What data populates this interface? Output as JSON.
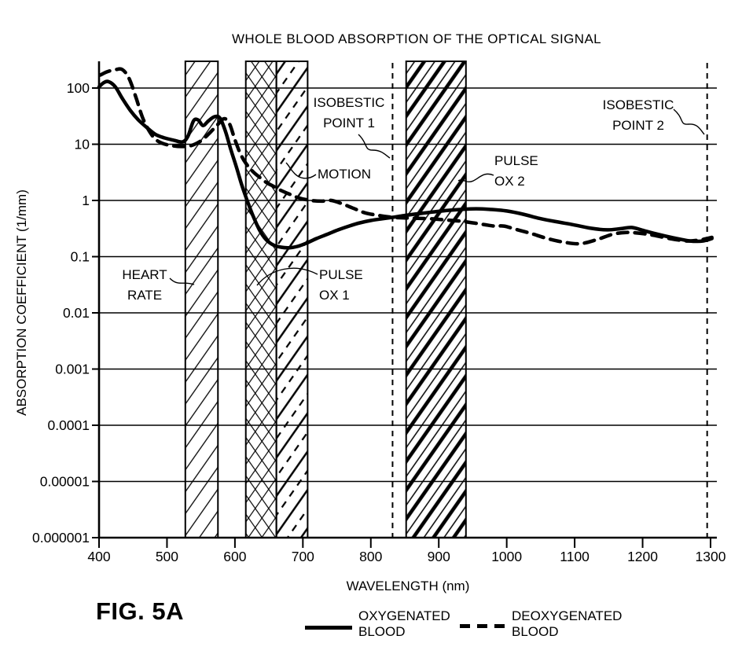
{
  "title": "WHOLE BLOOD ABSORPTION OF THE OPTICAL SIGNAL",
  "fig_label": "FIG. 5A",
  "axes": {
    "x_label": "WAVELENGTH (nm)",
    "y_label": "ABSORPTION COEFFICIENT (1/mm)",
    "x_ticks": [
      400,
      500,
      600,
      700,
      800,
      900,
      1000,
      1100,
      1200,
      1300
    ],
    "y_ticks": [
      "100",
      "10",
      "1",
      "0.1",
      "0.01",
      "0.001",
      "0.0001",
      "0.00001",
      "0.000001"
    ]
  },
  "annotations": {
    "heart_rate": "HEART\nRATE",
    "pulse_ox_1": "PULSE\nOX 1",
    "motion": "MOTION",
    "isobestic_1": "ISOBESTIC\nPOINT 1",
    "pulse_ox_2": "PULSE\nOX 2",
    "isobestic_2": "ISOBESTIC\nPOINT 2"
  },
  "legend": {
    "oxygenated": "OXYGENATED\nBLOOD",
    "deoxygenated": "DEOXYGENATED\nBLOOD"
  },
  "colors": {
    "ink": "#000000",
    "background": "#ffffff"
  },
  "chart_data": {
    "type": "line",
    "title": "WHOLE BLOOD ABSORPTION OF THE OPTICAL SIGNAL",
    "xlabel": "WAVELENGTH (nm)",
    "ylabel": "ABSORPTION COEFFICIENT (1/mm)",
    "x_range": [
      400,
      1300
    ],
    "y_scale": "log",
    "y_range": [
      1e-06,
      300
    ],
    "grid": "horizontal-decades",
    "legend_position": "below",
    "series": [
      {
        "name": "OXYGENATED BLOOD",
        "style": "solid",
        "points": [
          [
            400,
            105
          ],
          [
            407,
            125
          ],
          [
            414,
            130
          ],
          [
            424,
            105
          ],
          [
            434,
            66
          ],
          [
            446,
            40
          ],
          [
            458,
            27
          ],
          [
            470,
            20
          ],
          [
            483,
            15
          ],
          [
            496,
            13
          ],
          [
            510,
            11.8
          ],
          [
            523,
            11
          ],
          [
            531,
            14
          ],
          [
            539,
            26
          ],
          [
            546,
            27
          ],
          [
            553,
            21.5
          ],
          [
            561,
            26
          ],
          [
            570,
            31
          ],
          [
            578,
            29
          ],
          [
            586,
            17
          ],
          [
            594,
            8
          ],
          [
            602,
            4
          ],
          [
            610,
            1.9
          ],
          [
            618,
            1.0
          ],
          [
            627,
            0.52
          ],
          [
            636,
            0.3
          ],
          [
            646,
            0.2
          ],
          [
            657,
            0.16
          ],
          [
            668,
            0.147
          ],
          [
            680,
            0.144
          ],
          [
            692,
            0.152
          ],
          [
            706,
            0.175
          ],
          [
            720,
            0.21
          ],
          [
            736,
            0.25
          ],
          [
            752,
            0.3
          ],
          [
            768,
            0.35
          ],
          [
            784,
            0.4
          ],
          [
            800,
            0.44
          ],
          [
            816,
            0.47
          ],
          [
            832,
            0.5
          ],
          [
            850,
            0.54
          ],
          [
            870,
            0.58
          ],
          [
            890,
            0.62
          ],
          [
            910,
            0.66
          ],
          [
            932,
            0.69
          ],
          [
            955,
            0.71
          ],
          [
            978,
            0.69
          ],
          [
            1000,
            0.65
          ],
          [
            1024,
            0.57
          ],
          [
            1048,
            0.48
          ],
          [
            1072,
            0.42
          ],
          [
            1098,
            0.37
          ],
          [
            1124,
            0.32
          ],
          [
            1148,
            0.3
          ],
          [
            1168,
            0.315
          ],
          [
            1184,
            0.33
          ],
          [
            1202,
            0.29
          ],
          [
            1222,
            0.25
          ],
          [
            1246,
            0.215
          ],
          [
            1270,
            0.19
          ],
          [
            1288,
            0.19
          ],
          [
            1302,
            0.21
          ]
        ]
      },
      {
        "name": "DEOXYGENATED BLOOD",
        "style": "dashed",
        "points": [
          [
            402,
            170
          ],
          [
            412,
            195
          ],
          [
            424,
            212
          ],
          [
            434,
            214
          ],
          [
            444,
            150
          ],
          [
            454,
            70
          ],
          [
            464,
            30
          ],
          [
            474,
            17
          ],
          [
            484,
            12
          ],
          [
            495,
            10.2
          ],
          [
            508,
            9.4
          ],
          [
            522,
            9.1
          ],
          [
            536,
            9.5
          ],
          [
            550,
            11.5
          ],
          [
            562,
            15.5
          ],
          [
            574,
            22
          ],
          [
            584,
            28.5
          ],
          [
            592,
            23
          ],
          [
            600,
            12
          ],
          [
            608,
            6.8
          ],
          [
            616,
            4.6
          ],
          [
            626,
            3.3
          ],
          [
            636,
            2.6
          ],
          [
            646,
            2.1
          ],
          [
            656,
            1.8
          ],
          [
            668,
            1.5
          ],
          [
            682,
            1.27
          ],
          [
            695,
            1.1
          ],
          [
            712,
            1.0
          ],
          [
            728,
            0.97
          ],
          [
            742,
            1.0
          ],
          [
            758,
            0.87
          ],
          [
            775,
            0.72
          ],
          [
            792,
            0.6
          ],
          [
            812,
            0.54
          ],
          [
            832,
            0.5
          ],
          [
            850,
            0.49
          ],
          [
            870,
            0.48
          ],
          [
            890,
            0.47
          ],
          [
            910,
            0.45
          ],
          [
            930,
            0.43
          ],
          [
            950,
            0.4
          ],
          [
            968,
            0.37
          ],
          [
            982,
            0.35
          ],
          [
            996,
            0.35
          ],
          [
            1012,
            0.31
          ],
          [
            1035,
            0.26
          ],
          [
            1060,
            0.21
          ],
          [
            1085,
            0.18
          ],
          [
            1108,
            0.17
          ],
          [
            1132,
            0.2
          ],
          [
            1156,
            0.25
          ],
          [
            1176,
            0.27
          ],
          [
            1196,
            0.26
          ],
          [
            1216,
            0.24
          ],
          [
            1240,
            0.21
          ],
          [
            1266,
            0.19
          ],
          [
            1286,
            0.2
          ],
          [
            1302,
            0.22
          ]
        ]
      }
    ],
    "bands": [
      {
        "name": "HEART RATE",
        "from_nm": 527,
        "to_nm": 575,
        "hatch": "diagonal"
      },
      {
        "name": "PULSE OX 1",
        "from_nm": 616,
        "to_nm": 661,
        "hatch": "crosshatch"
      },
      {
        "name": "MOTION",
        "from_nm": 661,
        "to_nm": 707,
        "hatch": "diagonal-dashed"
      },
      {
        "name": "PULSE OX 2",
        "from_nm": 852,
        "to_nm": 940,
        "hatch": "diagonal-heavy"
      }
    ],
    "vlines": [
      {
        "name": "ISOBESTIC POINT 1",
        "nm": 832,
        "style": "dashed"
      },
      {
        "name": "ISOBESTIC POINT 2",
        "nm": 1295,
        "style": "dashed"
      }
    ]
  }
}
